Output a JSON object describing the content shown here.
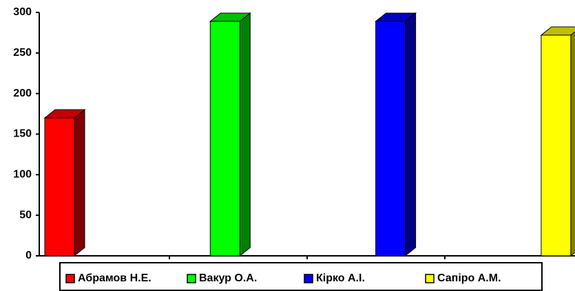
{
  "chart_data": {
    "type": "bar",
    "series": [
      {
        "name": "Абрамов Н.Е.",
        "color": "#ff0000",
        "values": [
          170
        ]
      },
      {
        "name": "Вакур О.А.",
        "color": "#00ff00",
        "values": [
          289
        ]
      },
      {
        "name": "Кірко А.І.",
        "color": "#0000ff",
        "values": [
          289
        ]
      },
      {
        "name": "Сапіро А.М.",
        "color": "#ffff00",
        "values": [
          272
        ]
      }
    ],
    "ylim": [
      0,
      300
    ],
    "yticks": [
      0,
      50,
      100,
      150,
      200,
      250,
      300
    ],
    "legend": "bottom"
  }
}
